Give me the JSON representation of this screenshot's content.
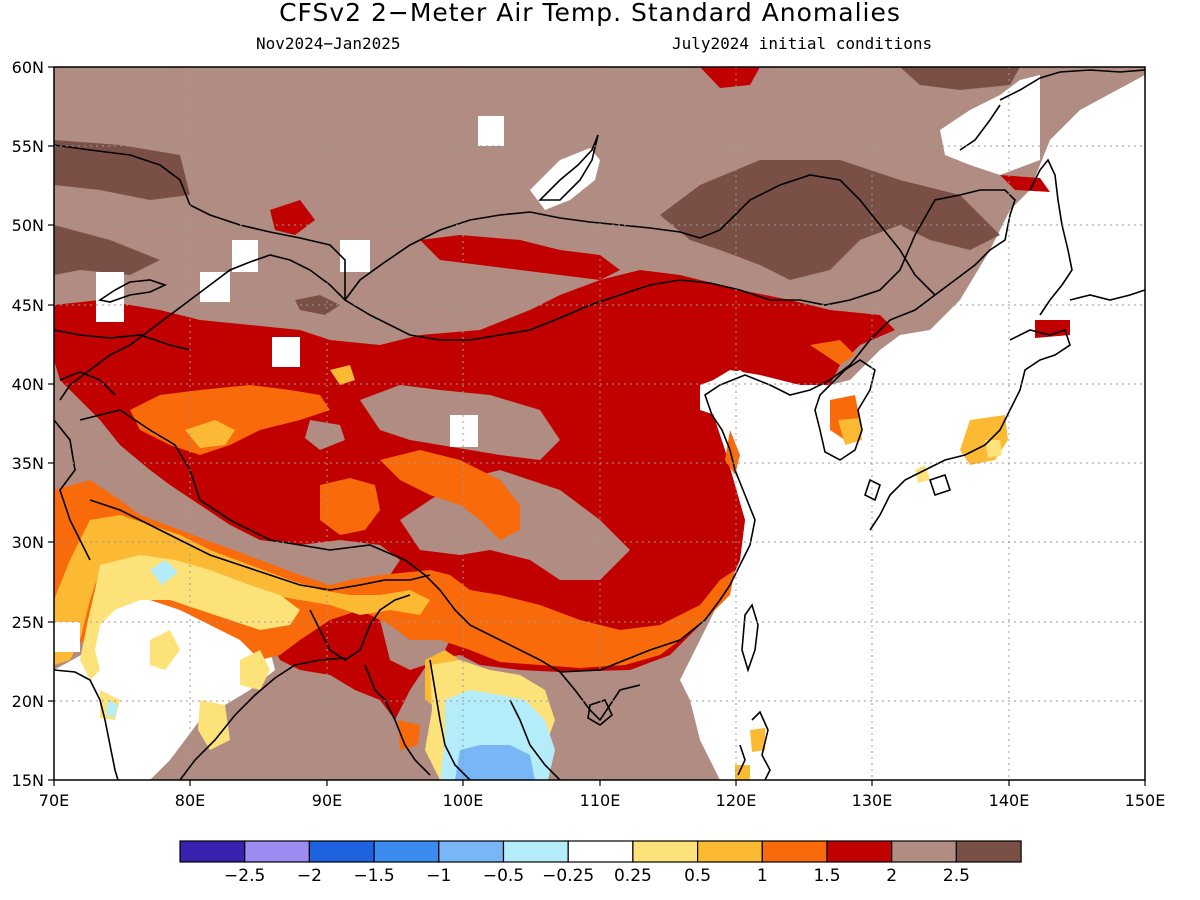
{
  "title": "CFSv2 2−Meter Air Temp. Standard Anomalies",
  "subtitle_left": "Nov2024−Jan2025",
  "subtitle_right": "July2024 initial conditions",
  "map": {
    "projection": "equirectangular",
    "lon_range": [
      70,
      150
    ],
    "lat_range": [
      15,
      60
    ],
    "lon_ticks": [
      "70E",
      "80E",
      "90E",
      "100E",
      "110E",
      "120E",
      "130E",
      "140E",
      "150E"
    ],
    "lat_ticks": [
      "60N",
      "55N",
      "50N",
      "45N",
      "40N",
      "35N",
      "30N",
      "25N",
      "20N",
      "15N"
    ],
    "grid": "dotted",
    "region": "East Asia"
  },
  "colorbar": {
    "colors": [
      "#3a22b0",
      "#9c8cf2",
      "#1f62df",
      "#3a8cf0",
      "#78b6f6",
      "#b4ecfa",
      "#ffffff",
      "#fde27a",
      "#fcb934",
      "#f96a0a",
      "#c10000",
      "#b08c82",
      "#7a5046"
    ],
    "labels": [
      "−2.5",
      "−2",
      "−1.5",
      "−1",
      "−0.5",
      "−0.25",
      "0.25",
      "0.5",
      "1",
      "1.5",
      "2",
      "2.5"
    ]
  },
  "colors": {
    "brown_light": "#b08c82",
    "brown_dark": "#7a5046",
    "red": "#c10000",
    "orange": "#f96a0a",
    "gold": "#fcb934",
    "yellow": "#fde27a",
    "lightblue": "#b4ecfa",
    "blue": "#78b6f6"
  }
}
